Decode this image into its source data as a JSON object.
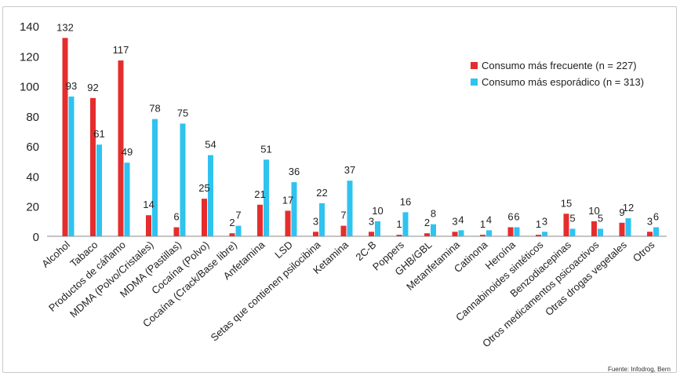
{
  "chart_data": {
    "type": "bar",
    "categories": [
      "Alcohol",
      "Tabaco",
      "Productos de cáñamo",
      "MDMA (Polvo/Cristales)",
      "MDMA (Pastillas)",
      "Cocaína (Polvo)",
      "Cocaína (Crack/Base libre)",
      "Anfetamina",
      "LSD",
      "Setas que contienen psilocibina",
      "Ketamina",
      "2C-B",
      "Poppers",
      "GHB/GBL",
      "Metanfetamina",
      "Catinona",
      "Heroína",
      "Cannabinoides sintéticos",
      "Benzodiacepinas",
      "Otros medicamentos psicoactivos",
      "Otras drogas vegetales",
      "Otros"
    ],
    "series": [
      {
        "name": "Consumo más frecuente (n = 227)",
        "color": "#e52d2d",
        "values": [
          132,
          92,
          117,
          14,
          6,
          25,
          2,
          21,
          17,
          3,
          7,
          3,
          1,
          2,
          3,
          1,
          6,
          1,
          15,
          10,
          9,
          3
        ]
      },
      {
        "name": "Consumo más esporádico (n = 313)",
        "color": "#2fc3ef",
        "values": [
          93,
          61,
          49,
          78,
          75,
          54,
          7,
          51,
          36,
          22,
          37,
          10,
          16,
          8,
          4,
          4,
          6,
          3,
          5,
          5,
          12,
          6
        ]
      }
    ],
    "title": "",
    "xlabel": "",
    "ylabel": "",
    "ylim": [
      0,
      140
    ],
    "yticks": [
      0,
      20,
      40,
      60,
      80,
      100,
      120,
      140
    ],
    "grid": false,
    "legend": "top-right"
  },
  "source": "Fuente: Infodrog, Bern"
}
